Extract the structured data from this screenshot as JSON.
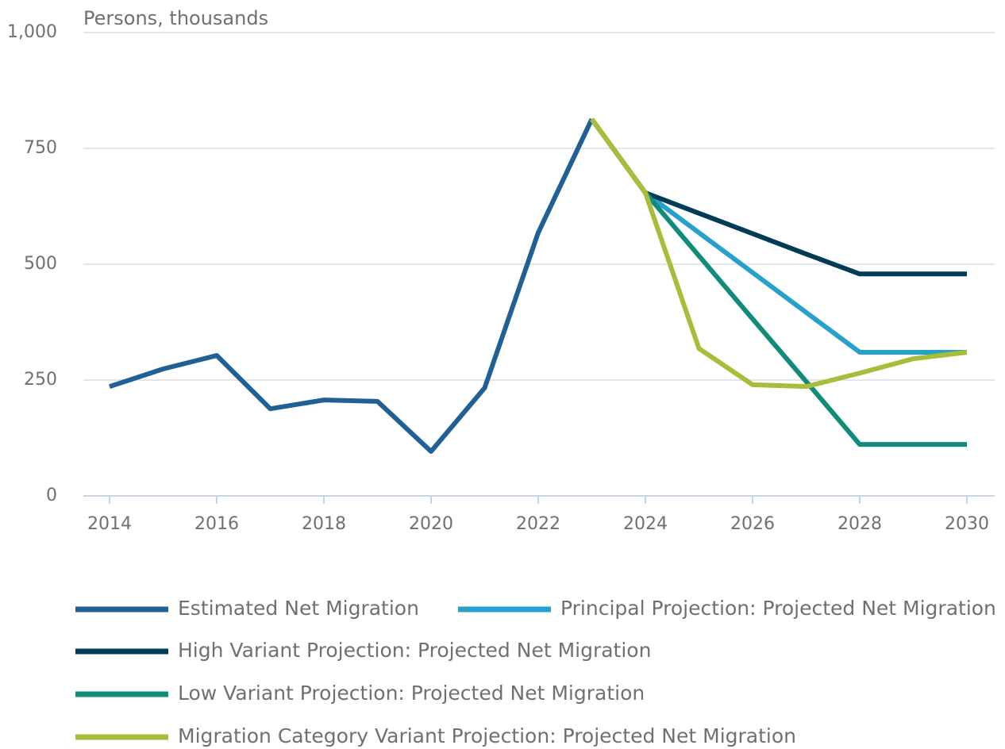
{
  "chart_data": {
    "type": "line",
    "y_axis_label": "Persons, thousands",
    "x": [
      2014,
      2015,
      2016,
      2017,
      2018,
      2019,
      2020,
      2021,
      2022,
      2023,
      2024,
      2025,
      2026,
      2027,
      2028,
      2029,
      2030
    ],
    "xlim": [
      2014,
      2030
    ],
    "xticks": [
      2014,
      2016,
      2018,
      2020,
      2022,
      2024,
      2026,
      2028,
      2030
    ],
    "ylim": [
      0,
      1000
    ],
    "yticks": [
      0,
      250,
      500,
      750,
      {
        "value": 1000,
        "label": "1,000"
      }
    ],
    "grid": true,
    "legend": "bottom",
    "series": [
      {
        "name": "Estimated Net Migration",
        "color": "#206095",
        "values": [
          236,
          274,
          303,
          188,
          207,
          204,
          96,
          233,
          568,
          813,
          null,
          null,
          null,
          null,
          null,
          null,
          null
        ]
      },
      {
        "name": "Principal Projection: Projected Net Migration",
        "color": "#27a0cc",
        "values": [
          null,
          null,
          null,
          null,
          null,
          null,
          null,
          null,
          null,
          813,
          654,
          568,
          482,
          396,
          310,
          310,
          310
        ]
      },
      {
        "name": "High Variant Projection: Projected Net Migration",
        "color": "#003c57",
        "values": [
          null,
          null,
          null,
          null,
          null,
          null,
          null,
          null,
          null,
          null,
          654,
          610,
          566,
          522,
          479,
          479,
          479
        ]
      },
      {
        "name": "Low Variant Projection: Projected Net Migration",
        "color": "#118c7b",
        "values": [
          null,
          null,
          null,
          null,
          null,
          null,
          null,
          null,
          null,
          813,
          654,
          518,
          382,
          247,
          111,
          111,
          111
        ]
      },
      {
        "name": "Migration Category Variant Projection: Projected Net Migration",
        "color": "#a8bd3a",
        "values": [
          null,
          null,
          null,
          null,
          null,
          null,
          null,
          null,
          null,
          813,
          654,
          318,
          240,
          236,
          265,
          296,
          310
        ]
      }
    ]
  }
}
